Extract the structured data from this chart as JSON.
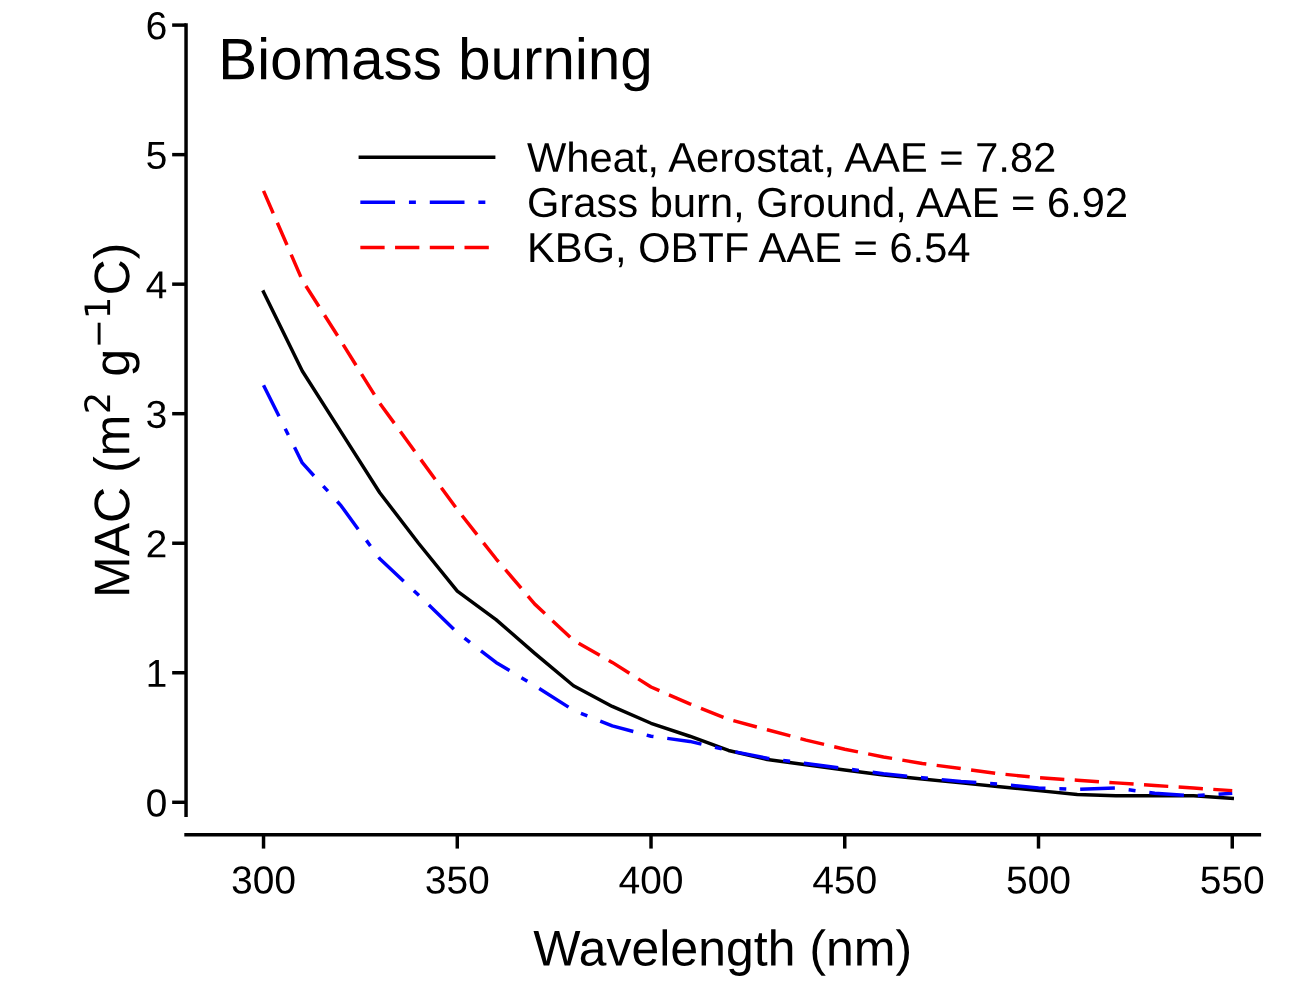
{
  "chart_data": {
    "type": "line",
    "title": "Biomass burning",
    "xlabel": "Wavelength (nm)",
    "ylabel": "MAC (m$^{2}$ g$^{−1}$C)",
    "x": [
      300,
      310,
      320,
      330,
      340,
      350,
      360,
      370,
      380,
      390,
      400,
      410,
      420,
      430,
      440,
      450,
      460,
      470,
      480,
      490,
      500,
      510,
      520,
      530,
      540,
      550
    ],
    "series": [
      {
        "name": "Wheat, Aerostat, AAE = 7.82",
        "color": "#000000",
        "line_style": "solid",
        "values": [
          3.94,
          3.33,
          2.86,
          2.39,
          2.0,
          1.63,
          1.41,
          1.15,
          0.9,
          0.74,
          0.61,
          0.51,
          0.4,
          0.33,
          0.29,
          0.25,
          0.21,
          0.18,
          0.15,
          0.12,
          0.09,
          0.06,
          0.05,
          0.05,
          0.05,
          0.03
        ]
      },
      {
        "name": "Grass burn, Ground, AAE = 6.92",
        "color": "#0000ff",
        "line_style": "dashdot",
        "values": [
          3.22,
          2.62,
          2.29,
          1.88,
          1.6,
          1.31,
          1.08,
          0.9,
          0.71,
          0.59,
          0.51,
          0.47,
          0.4,
          0.34,
          0.3,
          0.26,
          0.22,
          0.19,
          0.16,
          0.14,
          0.11,
          0.1,
          0.11,
          0.07,
          0.05,
          0.07
        ]
      },
      {
        "name": "KBG, OBTF AAE = 6.54",
        "color": "#ff0000",
        "line_style": "dashed",
        "values": [
          4.72,
          4.03,
          3.56,
          3.08,
          2.67,
          2.26,
          1.88,
          1.53,
          1.25,
          1.08,
          0.89,
          0.76,
          0.64,
          0.56,
          0.48,
          0.41,
          0.35,
          0.3,
          0.26,
          0.22,
          0.19,
          0.17,
          0.15,
          0.13,
          0.11,
          0.09
        ]
      }
    ],
    "xlim": [
      280,
      557
    ],
    "ylim": [
      -0.1,
      6
    ],
    "xticks": [
      300,
      350,
      400,
      450,
      500,
      550
    ],
    "yticks": [
      0,
      1,
      2,
      3,
      4,
      5,
      6
    ],
    "grid": false,
    "legend": "top",
    "marker": "none"
  }
}
